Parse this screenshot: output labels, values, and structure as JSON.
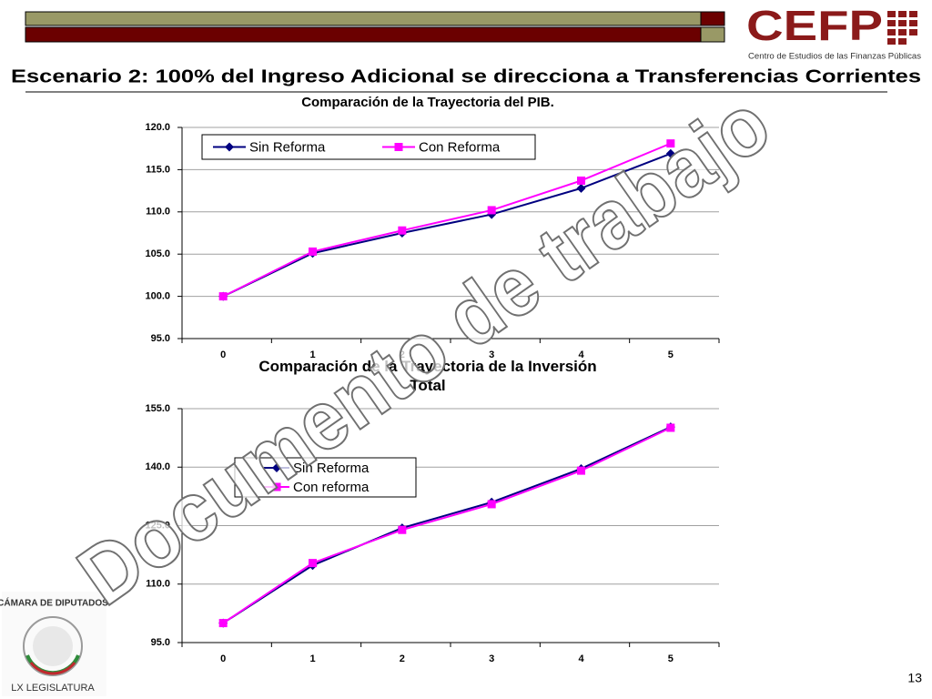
{
  "header": {
    "logo": "CEFP",
    "logo_subtitle": "Centro de Estudios de las Finanzas Públicas",
    "title": "Escenario 2: 100% del Ingreso Adicional se direcciona a Transferencias Corrientes"
  },
  "watermark": "Documento de trabajo",
  "seal": {
    "top": "CÁMARA DE DIPUTADOS",
    "bottom": "LX LEGISLATURA"
  },
  "page_number": "13",
  "chart_data": [
    {
      "type": "line",
      "title": "Comparación de la Trayectoria del PIB.",
      "categories": [
        "0",
        "1",
        "2",
        "3",
        "4",
        "5"
      ],
      "series": [
        {
          "name": "Sin Reforma",
          "color": "#000080",
          "marker": "diamond",
          "values": [
            100,
            105.1,
            107.5,
            109.7,
            112.8,
            116.9
          ]
        },
        {
          "name": "Con Reforma",
          "color": "#ff00ff",
          "marker": "square",
          "values": [
            100,
            105.3,
            107.8,
            110.2,
            113.7,
            118.1
          ]
        }
      ],
      "ylim": [
        95,
        120
      ],
      "yticks": [
        {
          "value": 95,
          "label": "95.0"
        },
        {
          "value": 100,
          "label": "100.0"
        },
        {
          "value": 105,
          "label": "105.0"
        },
        {
          "value": 110,
          "label": "110.0"
        },
        {
          "value": 115,
          "label": "115.0"
        },
        {
          "value": 120,
          "label": "120.0"
        }
      ],
      "grid": true
    },
    {
      "type": "line",
      "title": "Comparación de la Trayectoria de la Inversión Total",
      "categories": [
        "0",
        "1",
        "2",
        "3",
        "4",
        "5"
      ],
      "series": [
        {
          "name": "Sin Reforma",
          "color": "#000080",
          "marker": "diamond",
          "values": [
            100,
            114.8,
            124.4,
            131.0,
            139.6,
            150.3
          ]
        },
        {
          "name": "Con reforma",
          "color": "#ff00ff",
          "marker": "square",
          "values": [
            100,
            115.4,
            123.9,
            130.5,
            139.1,
            150.1
          ]
        }
      ],
      "ylim": [
        95,
        155
      ],
      "yticks": [
        {
          "value": 95,
          "label": "95.0"
        },
        {
          "value": 110,
          "label": "110.0"
        },
        {
          "value": 125,
          "label": "125.0"
        },
        {
          "value": 140,
          "label": "140.0"
        },
        {
          "value": 155,
          "label": "155.0"
        }
      ],
      "grid": true
    }
  ]
}
